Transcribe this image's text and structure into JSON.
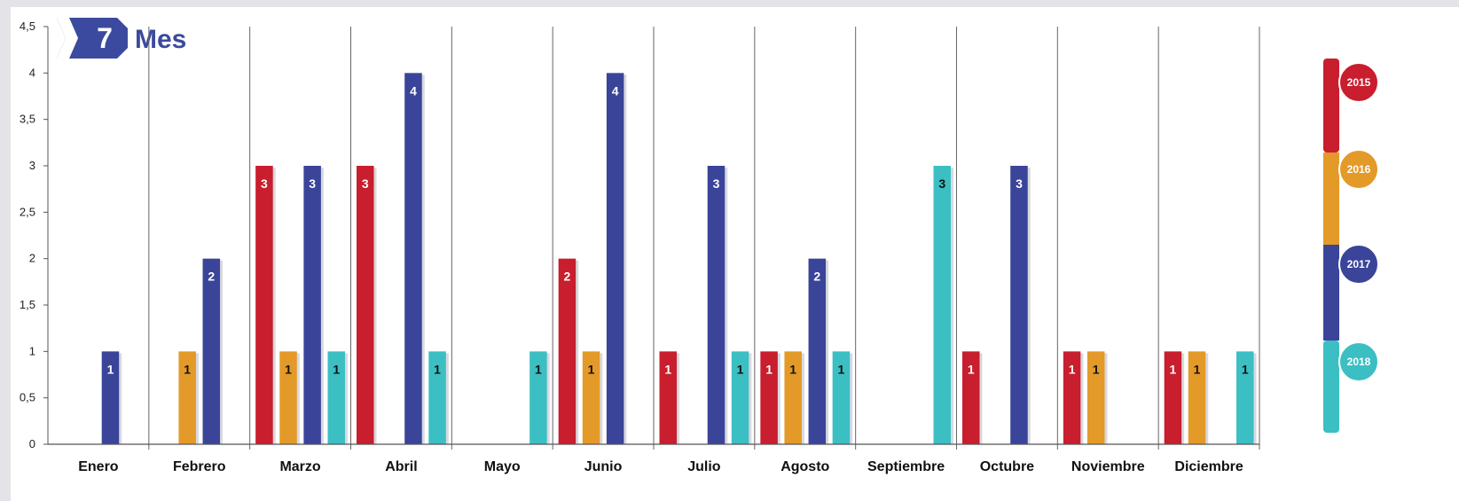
{
  "badge": {
    "number": "7",
    "label": "Mes",
    "color": "#3b4a9e"
  },
  "chart_data": {
    "type": "bar",
    "title": "",
    "xlabel": "",
    "ylabel": "",
    "ylim": [
      0,
      4.5
    ],
    "yticks": [
      "0",
      "0,5",
      "1",
      "1,5",
      "2",
      "2,5",
      "3",
      "3,5",
      "4",
      "4,5"
    ],
    "categories": [
      "Enero",
      "Febrero",
      "Marzo",
      "Abril",
      "Mayo",
      "Junio",
      "Julio",
      "Agosto",
      "Septiembre",
      "Octubre",
      "Noviembre",
      "Diciembre"
    ],
    "series": [
      {
        "name": "2015",
        "color": "#c81e2d",
        "label_color": "#ffffff",
        "values": [
          0,
          0,
          3,
          3,
          0,
          2,
          1,
          1,
          0,
          1,
          1,
          1
        ]
      },
      {
        "name": "2016",
        "color": "#e39a28",
        "label_color": "#111111",
        "values": [
          0,
          1,
          1,
          0,
          0,
          1,
          0,
          1,
          0,
          0,
          1,
          1
        ]
      },
      {
        "name": "2017",
        "color": "#3a4499",
        "label_color": "#ffffff",
        "values": [
          1,
          2,
          3,
          4,
          0,
          4,
          3,
          2,
          0,
          3,
          0,
          0
        ]
      },
      {
        "name": "2018",
        "color": "#3bbfc3",
        "label_color": "#111111",
        "values": [
          0,
          0,
          1,
          1,
          1,
          0,
          1,
          1,
          3,
          0,
          0,
          1
        ]
      }
    ],
    "grid": "vertical separators",
    "legend_position": "right"
  }
}
